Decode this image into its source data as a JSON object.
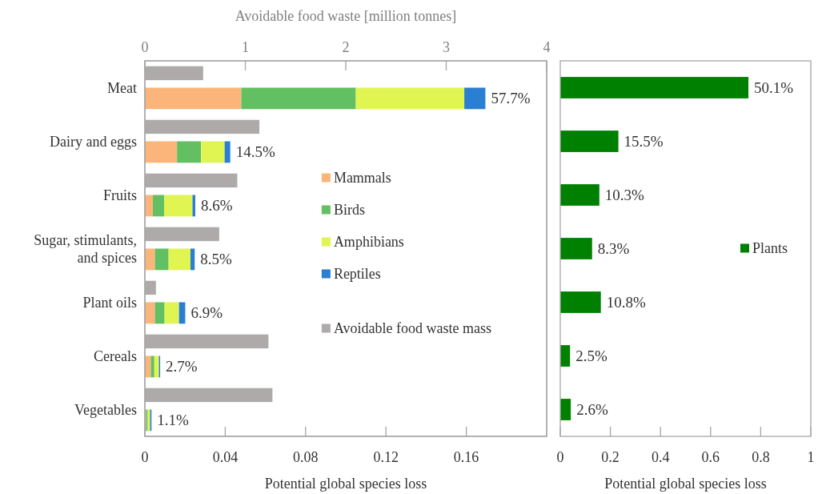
{
  "chart_data": [
    {
      "type": "bar",
      "orientation": "horizontal",
      "stacked": true,
      "xlabel": "Potential global species loss",
      "categories": [
        "Meat",
        "Dairy and eggs",
        "Fruits",
        "Sugar, stimulants, and spices",
        "Plant oils",
        "Cereals",
        "Vegetables"
      ],
      "xlim": [
        0,
        0.2
      ],
      "xticks": [
        0,
        0.04,
        0.08,
        0.12,
        0.16
      ],
      "legend": "right",
      "series": [
        {
          "name": "Mammals",
          "color": "#fbb57a",
          "values": [
            0.048,
            0.016,
            0.004,
            0.005,
            0.005,
            0.003,
            0.0006
          ]
        },
        {
          "name": "Birds",
          "color": "#62bf62",
          "values": [
            0.057,
            0.012,
            0.0056,
            0.0068,
            0.0048,
            0.0017,
            0.0008
          ]
        },
        {
          "name": "Amphibians",
          "color": "#e1f552",
          "values": [
            0.054,
            0.0117,
            0.0141,
            0.0109,
            0.0072,
            0.0023,
            0.0012
          ]
        },
        {
          "name": "Reptiles",
          "color": "#2b7fd2",
          "values": [
            0.0105,
            0.0028,
            0.0014,
            0.0021,
            0.0031,
            0.0006,
            0.0007
          ]
        }
      ],
      "annotations": [
        {
          "text": "57.7%",
          "x": 0.1695,
          "y": "Meat"
        },
        {
          "text": "14.5%",
          "x": 0.0425,
          "y": "Dairy and eggs"
        },
        {
          "text": "8.6%",
          "x": 0.0251,
          "y": "Fruits"
        },
        {
          "text": "8.5%",
          "x": 0.0248,
          "y": "Sugar, stimulants, and spices"
        },
        {
          "text": "6.9%",
          "x": 0.0201,
          "y": "Plant oils"
        },
        {
          "text": "2.7%",
          "x": 0.0076,
          "y": "Cereals"
        },
        {
          "text": "1.1%",
          "x": 0.0033,
          "y": "Vegetables"
        }
      ]
    },
    {
      "type": "bar",
      "orientation": "horizontal",
      "xlabel": "Avoidable food waste [million tonnes]",
      "categories": [
        "Meat",
        "Dairy and eggs",
        "Fruits",
        "Sugar, stimulants, and spices",
        "Plant oils",
        "Cereals",
        "Vegetables"
      ],
      "xlim": [
        0,
        4
      ],
      "xticks": [
        0,
        1,
        2,
        3,
        4
      ],
      "tick_labels": "x",
      "legend": "right",
      "series": [
        {
          "name": "Avoidable food waste mass",
          "color": "#aeaaaa",
          "values": [
            0.58,
            1.14,
            0.92,
            0.74,
            0.11,
            1.23,
            1.27
          ]
        }
      ]
    },
    {
      "type": "bar",
      "orientation": "horizontal",
      "xlabel": "Potential global species loss",
      "categories": [
        "Meat",
        "Dairy and eggs",
        "Fruits",
        "Sugar, stimulants, and spices",
        "Plant oils",
        "Cereals",
        "Vegetables"
      ],
      "xlim": [
        0,
        1
      ],
      "xticks": [
        0,
        0.2,
        0.4,
        0.6,
        0.8,
        1
      ],
      "tick_labels": "x",
      "legend": "right",
      "series": [
        {
          "name": "Plants",
          "color": "#008000",
          "values": [
            0.751,
            0.232,
            0.156,
            0.127,
            0.162,
            0.039,
            0.042
          ]
        }
      ],
      "annotations": [
        {
          "text": "50.1%",
          "x": 0.751,
          "y": "Meat"
        },
        {
          "text": "15.5%",
          "x": 0.232,
          "y": "Dairy and eggs"
        },
        {
          "text": "10.3%",
          "x": 0.156,
          "y": "Fruits"
        },
        {
          "text": "8.3%",
          "x": 0.127,
          "y": "Sugar, stimulants, and spices"
        },
        {
          "text": "10.8%",
          "x": 0.162,
          "y": "Plant oils"
        },
        {
          "text": "2.5%",
          "x": 0.039,
          "y": "Cereals"
        },
        {
          "text": "2.6%",
          "x": 0.042,
          "y": "Vegetables"
        }
      ]
    }
  ]
}
